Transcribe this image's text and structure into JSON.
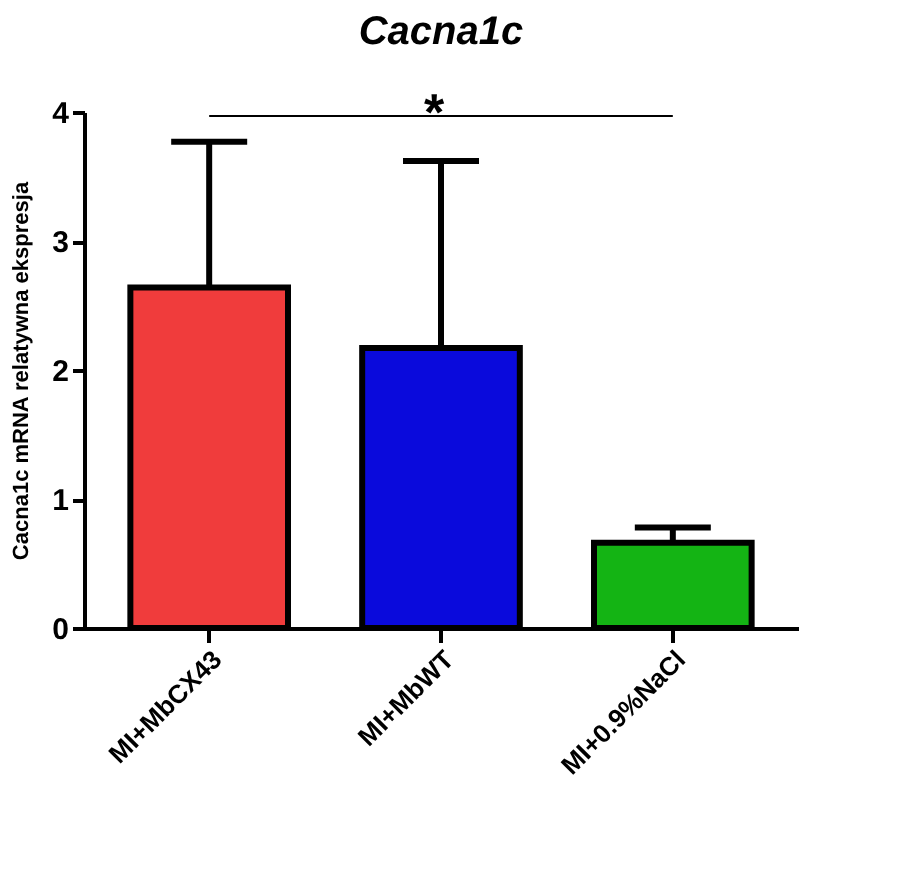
{
  "chart_data": {
    "type": "bar",
    "title": "Cacna1c",
    "ylabel": "Cacna1c mRNA relatywna ekspresja",
    "categories": [
      "MI+MbCX43",
      "MI+MbWT",
      "MI+0.9%NaCl"
    ],
    "values": [
      2.64,
      2.17,
      0.66
    ],
    "colors": [
      "#f03c3c",
      "#0a0adc",
      "#14b414"
    ],
    "errors": [
      [
        2.64,
        3.77
      ],
      [
        2.17,
        3.62
      ],
      [
        0.66,
        0.78
      ]
    ],
    "ylim": [
      0,
      4
    ],
    "yticks": [
      0,
      1,
      2,
      3,
      4
    ],
    "grid": false,
    "legend": false,
    "annotations": [
      "*"
    ]
  }
}
